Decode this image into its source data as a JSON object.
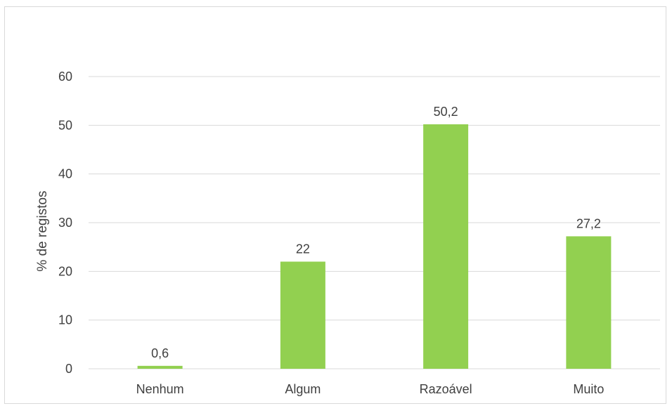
{
  "chart_data": {
    "type": "bar",
    "categories": [
      "Nenhum",
      "Algum",
      "Razoável",
      "Muito"
    ],
    "values": [
      0.6,
      22,
      50.2,
      27.2
    ],
    "data_labels": [
      "0,6",
      "22",
      "50,2",
      "27,2"
    ],
    "title": "",
    "xlabel": "",
    "ylabel": "% de registos",
    "ylim": [
      0,
      60
    ],
    "yticks": [
      0,
      10,
      20,
      30,
      40,
      50,
      60
    ],
    "ytick_labels": [
      "0",
      "10",
      "20",
      "30",
      "40",
      "50",
      "60"
    ],
    "grid": true,
    "legend": "none",
    "bar_color": "#92d050",
    "grid_color": "#d9d9d9"
  }
}
